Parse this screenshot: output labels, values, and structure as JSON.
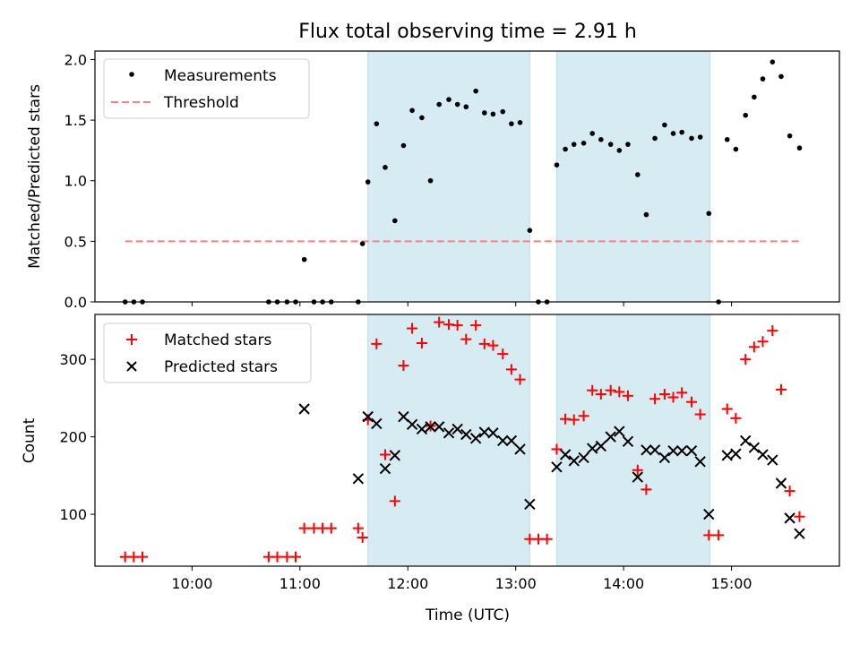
{
  "figure": {
    "title": "Flux total observing time = 2.91 h"
  },
  "chart_data": [
    {
      "type": "scatter",
      "ylabel": "Matched/Predicted stars",
      "xlim": [
        9.1,
        16.0
      ],
      "ylim": [
        0.0,
        2.07
      ],
      "yticks": [
        0.0,
        0.5,
        1.0,
        1.5,
        2.0
      ],
      "yticklabels": [
        "0.0",
        "0.5",
        "1.0",
        "1.5",
        "2.0"
      ],
      "shaded_intervals": [
        [
          11.63,
          13.13
        ],
        [
          13.38,
          14.8
        ]
      ],
      "legend": {
        "placement": "upper-left",
        "entries": [
          "Measurements",
          "Threshold"
        ]
      },
      "threshold": {
        "name": "Threshold",
        "value": 0.5,
        "x_range": [
          9.38,
          15.63
        ],
        "color": "#ff7f7f"
      },
      "series": [
        {
          "name": "Measurements",
          "color": "#000000",
          "points": [
            [
              9.38,
              0
            ],
            [
              9.46,
              0
            ],
            [
              9.54,
              0
            ],
            [
              10.71,
              0
            ],
            [
              10.79,
              0
            ],
            [
              10.88,
              0
            ],
            [
              10.96,
              0
            ],
            [
              11.04,
              0.35
            ],
            [
              11.13,
              0
            ],
            [
              11.21,
              0
            ],
            [
              11.29,
              0
            ],
            [
              11.54,
              0
            ],
            [
              11.58,
              0.48
            ],
            [
              11.63,
              0.99
            ],
            [
              11.71,
              1.47
            ],
            [
              11.79,
              1.11
            ],
            [
              11.88,
              0.67
            ],
            [
              11.96,
              1.29
            ],
            [
              12.04,
              1.58
            ],
            [
              12.13,
              1.52
            ],
            [
              12.21,
              1.0
            ],
            [
              12.29,
              1.63
            ],
            [
              12.38,
              1.67
            ],
            [
              12.46,
              1.63
            ],
            [
              12.54,
              1.61
            ],
            [
              12.63,
              1.74
            ],
            [
              12.71,
              1.56
            ],
            [
              12.79,
              1.55
            ],
            [
              12.88,
              1.57
            ],
            [
              12.96,
              1.47
            ],
            [
              13.04,
              1.48
            ],
            [
              13.13,
              0.59
            ],
            [
              13.21,
              0
            ],
            [
              13.29,
              0
            ],
            [
              13.38,
              1.13
            ],
            [
              13.46,
              1.26
            ],
            [
              13.54,
              1.3
            ],
            [
              13.63,
              1.31
            ],
            [
              13.71,
              1.39
            ],
            [
              13.79,
              1.34
            ],
            [
              13.88,
              1.3
            ],
            [
              13.96,
              1.25
            ],
            [
              14.04,
              1.3
            ],
            [
              14.13,
              1.05
            ],
            [
              14.21,
              0.72
            ],
            [
              14.29,
              1.35
            ],
            [
              14.38,
              1.46
            ],
            [
              14.46,
              1.39
            ],
            [
              14.54,
              1.4
            ],
            [
              14.63,
              1.35
            ],
            [
              14.71,
              1.36
            ],
            [
              14.79,
              0.73
            ],
            [
              14.88,
              0
            ],
            [
              14.96,
              1.34
            ],
            [
              15.04,
              1.26
            ],
            [
              15.13,
              1.54
            ],
            [
              15.21,
              1.69
            ],
            [
              15.29,
              1.84
            ],
            [
              15.38,
              1.98
            ],
            [
              15.46,
              1.86
            ],
            [
              15.54,
              1.37
            ],
            [
              15.63,
              1.27
            ]
          ]
        }
      ]
    },
    {
      "type": "scatter",
      "xlabel": "Time (UTC)",
      "ylabel": "Count",
      "xlim": [
        9.1,
        16.0
      ],
      "ylim": [
        33,
        358
      ],
      "xticks": [
        10,
        11,
        12,
        13,
        14,
        15
      ],
      "xticklabels": [
        "10:00",
        "11:00",
        "12:00",
        "13:00",
        "14:00",
        "15:00"
      ],
      "yticks": [
        100,
        200,
        300
      ],
      "yticklabels": [
        "100",
        "200",
        "300"
      ],
      "shaded_intervals": [
        [
          11.63,
          13.13
        ],
        [
          13.38,
          14.8
        ]
      ],
      "legend": {
        "placement": "upper-left",
        "entries": [
          "Matched stars",
          "Predicted stars"
        ]
      },
      "series": [
        {
          "name": "Matched stars",
          "marker": "plus",
          "color": "#ff0000",
          "points": [
            [
              9.38,
              45
            ],
            [
              9.46,
              45
            ],
            [
              9.54,
              45
            ],
            [
              10.71,
              45
            ],
            [
              10.79,
              45
            ],
            [
              10.88,
              45
            ],
            [
              10.96,
              45
            ],
            [
              11.04,
              82
            ],
            [
              11.13,
              82
            ],
            [
              11.21,
              82
            ],
            [
              11.29,
              82
            ],
            [
              11.54,
              82
            ],
            [
              11.58,
              70
            ],
            [
              11.63,
              222
            ],
            [
              11.71,
              320
            ],
            [
              11.79,
              177
            ],
            [
              11.88,
              117
            ],
            [
              11.96,
              292
            ],
            [
              12.04,
              340
            ],
            [
              12.13,
              321
            ],
            [
              12.21,
              214
            ],
            [
              12.29,
              348
            ],
            [
              12.38,
              345
            ],
            [
              12.46,
              344
            ],
            [
              12.54,
              326
            ],
            [
              12.63,
              344
            ],
            [
              12.71,
              320
            ],
            [
              12.79,
              318
            ],
            [
              12.88,
              307
            ],
            [
              12.96,
              287
            ],
            [
              13.04,
              274
            ],
            [
              13.13,
              68
            ],
            [
              13.21,
              68
            ],
            [
              13.29,
              68
            ],
            [
              13.38,
              184
            ],
            [
              13.46,
              223
            ],
            [
              13.54,
              222
            ],
            [
              13.63,
              227
            ],
            [
              13.71,
              260
            ],
            [
              13.79,
              255
            ],
            [
              13.88,
              260
            ],
            [
              13.96,
              258
            ],
            [
              14.04,
              253
            ],
            [
              14.13,
              157
            ],
            [
              14.21,
              132
            ],
            [
              14.29,
              249
            ],
            [
              14.38,
              255
            ],
            [
              14.46,
              251
            ],
            [
              14.54,
              257
            ],
            [
              14.63,
              245
            ],
            [
              14.71,
              229
            ],
            [
              14.79,
              73
            ],
            [
              14.88,
              73
            ],
            [
              14.96,
              236
            ],
            [
              15.04,
              224
            ],
            [
              15.13,
              300
            ],
            [
              15.21,
              316
            ],
            [
              15.29,
              323
            ],
            [
              15.38,
              337
            ],
            [
              15.46,
              261
            ],
            [
              15.54,
              130
            ],
            [
              15.63,
              97
            ]
          ]
        },
        {
          "name": "Predicted stars",
          "marker": "x",
          "color": "#000000",
          "points": [
            [
              11.04,
              236
            ],
            [
              11.54,
              146
            ],
            [
              11.63,
              226
            ],
            [
              11.71,
              217
            ],
            [
              11.79,
              159
            ],
            [
              11.88,
              176
            ],
            [
              11.96,
              226
            ],
            [
              12.04,
              216
            ],
            [
              12.13,
              210
            ],
            [
              12.21,
              213
            ],
            [
              12.29,
              213
            ],
            [
              12.38,
              205
            ],
            [
              12.46,
              210
            ],
            [
              12.54,
              203
            ],
            [
              12.63,
              198
            ],
            [
              12.71,
              206
            ],
            [
              12.79,
              205
            ],
            [
              12.88,
              195
            ],
            [
              12.96,
              195
            ],
            [
              13.04,
              184
            ],
            [
              13.13,
              113
            ],
            [
              13.38,
              161
            ],
            [
              13.46,
              177
            ],
            [
              13.54,
              169
            ],
            [
              13.63,
              173
            ],
            [
              13.71,
              185
            ],
            [
              13.79,
              188
            ],
            [
              13.88,
              200
            ],
            [
              13.96,
              207
            ],
            [
              14.04,
              194
            ],
            [
              14.13,
              148
            ],
            [
              14.21,
              183
            ],
            [
              14.29,
              183
            ],
            [
              14.38,
              173
            ],
            [
              14.46,
              182
            ],
            [
              14.54,
              182
            ],
            [
              14.63,
              182
            ],
            [
              14.71,
              168
            ],
            [
              14.79,
              100
            ],
            [
              14.96,
              176
            ],
            [
              15.04,
              178
            ],
            [
              15.13,
              195
            ],
            [
              15.21,
              186
            ],
            [
              15.29,
              177
            ],
            [
              15.38,
              170
            ],
            [
              15.46,
              140
            ],
            [
              15.54,
              95
            ],
            [
              15.63,
              75
            ]
          ]
        }
      ]
    }
  ]
}
